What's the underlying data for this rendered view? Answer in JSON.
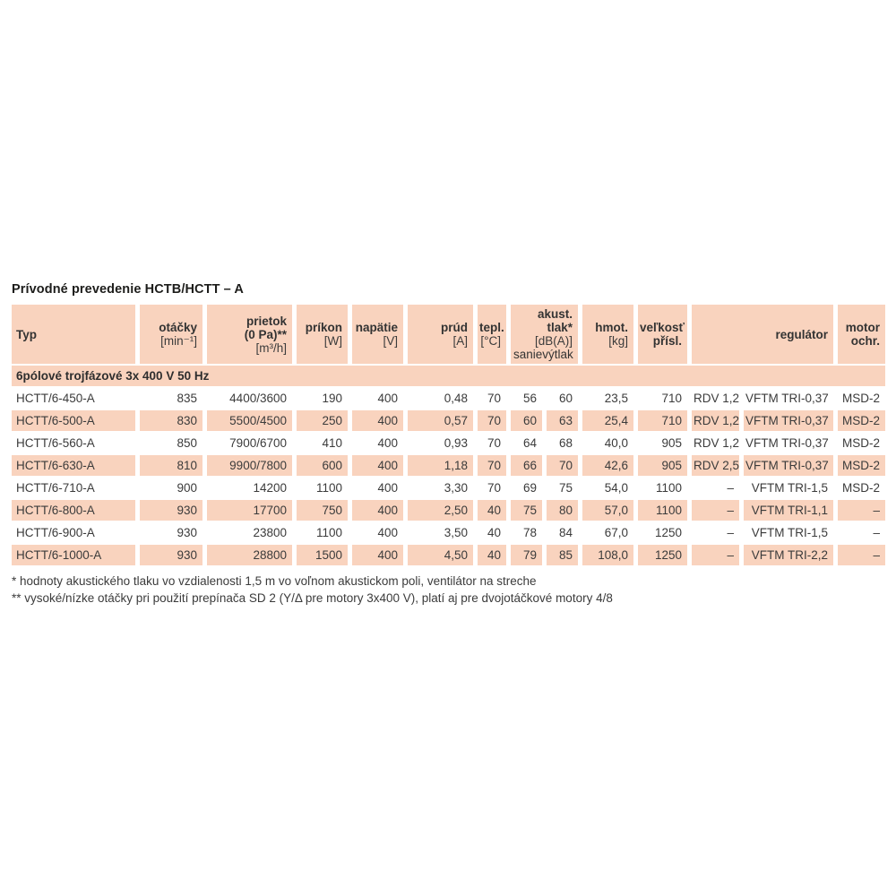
{
  "page": {
    "title": "Prívodné prevedenie HCTB/HCTT – A"
  },
  "colors": {
    "cell_peach": "#f9d3be",
    "text_dark": "#3b3b3b"
  },
  "table": {
    "headers": {
      "typ": {
        "label": "Typ"
      },
      "otacky": {
        "label": "otáčky",
        "unit": "[min⁻¹]"
      },
      "prietok": {
        "label": "prietok",
        "label2": "(0 Pa)**",
        "unit": "[m³/h]"
      },
      "prikon": {
        "label": "príkon",
        "unit": "[W]"
      },
      "napatie": {
        "label": "napätie",
        "unit": "[V]"
      },
      "prud": {
        "label": "prúd",
        "unit": "[A]"
      },
      "tepl": {
        "label": "tepl.",
        "unit": "[°C]"
      },
      "akust": {
        "label": "akust. tlak*",
        "unit": "[dB(A)]",
        "sub_left": "sanie",
        "sub_right": "výtlak"
      },
      "hmot": {
        "label": "hmot.",
        "unit": "[kg]"
      },
      "velkost": {
        "label": "veľkosť",
        "label2": "přísl."
      },
      "regulator": {
        "label": "regulátor"
      },
      "motor": {
        "label": "motor",
        "label2": "ochr."
      }
    },
    "section_title": "6pólové trojfázové 3x 400 V 50 Hz",
    "rows": [
      [
        "HCTT/6-450-A",
        "835",
        "4400/3600",
        "190",
        "400",
        "0,48",
        "70",
        "56",
        "60",
        "23,5",
        "710",
        "RDV 1,2",
        "VFTM TRI-0,37",
        "MSD-2"
      ],
      [
        "HCTT/6-500-A",
        "830",
        "5500/4500",
        "250",
        "400",
        "0,57",
        "70",
        "60",
        "63",
        "25,4",
        "710",
        "RDV 1,2",
        "VFTM TRI-0,37",
        "MSD-2"
      ],
      [
        "HCTT/6-560-A",
        "850",
        "7900/6700",
        "410",
        "400",
        "0,93",
        "70",
        "64",
        "68",
        "40,0",
        "905",
        "RDV 1,2",
        "VFTM TRI-0,37",
        "MSD-2"
      ],
      [
        "HCTT/6-630-A",
        "810",
        "9900/7800",
        "600",
        "400",
        "1,18",
        "70",
        "66",
        "70",
        "42,6",
        "905",
        "RDV 2,5",
        "VFTM TRI-0,37",
        "MSD-2"
      ],
      [
        "HCTT/6-710-A",
        "900",
        "14200",
        "1100",
        "400",
        "3,30",
        "70",
        "69",
        "75",
        "54,0",
        "1100",
        "–",
        "VFTM TRI-1,5",
        "MSD-2"
      ],
      [
        "HCTT/6-800-A",
        "930",
        "17700",
        "750",
        "400",
        "2,50",
        "40",
        "75",
        "80",
        "57,0",
        "1100",
        "–",
        "VFTM TRI-1,1",
        "–"
      ],
      [
        "HCTT/6-900-A",
        "930",
        "23800",
        "1100",
        "400",
        "3,50",
        "40",
        "78",
        "84",
        "67,0",
        "1250",
        "–",
        "VFTM TRI-1,5",
        "–"
      ],
      [
        "HCTT/6-1000-A",
        "930",
        "28800",
        "1500",
        "400",
        "4,50",
        "40",
        "79",
        "85",
        "108,0",
        "1250",
        "–",
        "VFTM TRI-2,2",
        "–"
      ]
    ]
  },
  "footnotes": [
    "* hodnoty akustického tlaku vo vzdialenosti 1,5 m vo voľnom akustickom poli, ventilátor na streche",
    "** vysoké/nízke otáčky pri použití prepínača SD 2 (Y/Δ pre motory 3x400 V), platí aj pre dvojotáčkové motory 4/8"
  ]
}
